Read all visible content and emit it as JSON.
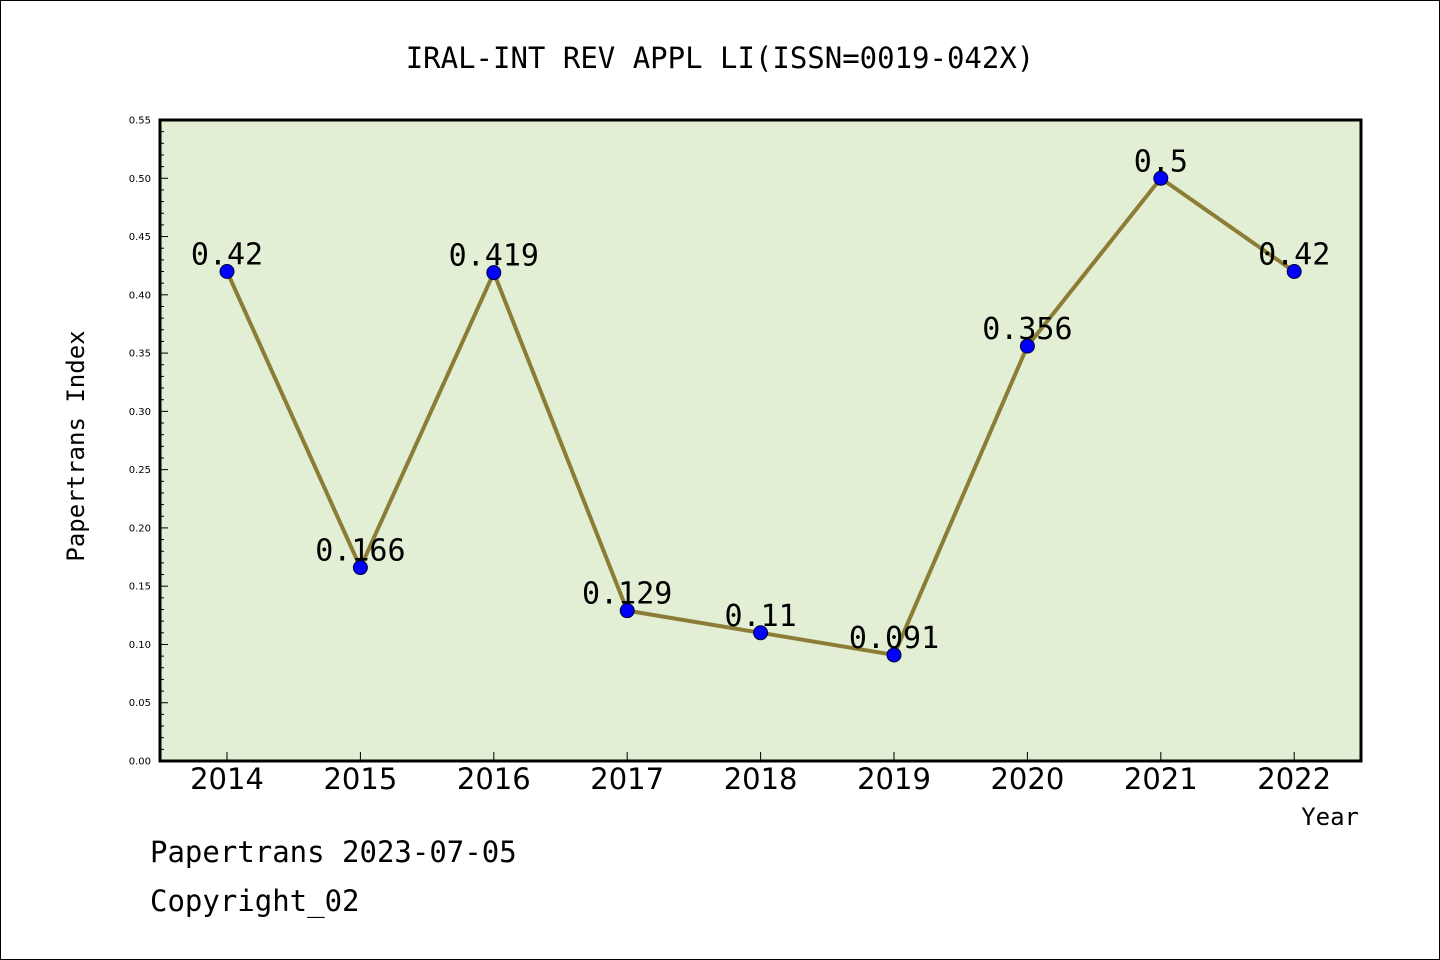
{
  "chart_data": {
    "type": "line",
    "title": "IRAL-INT REV APPL LI(ISSN=0019-042X)",
    "xlabel": "Year",
    "ylabel": "Papertrans Index",
    "categories": [
      "2014",
      "2015",
      "2016",
      "2017",
      "2018",
      "2019",
      "2020",
      "2021",
      "2022"
    ],
    "values": [
      0.42,
      0.166,
      0.419,
      0.129,
      0.11,
      0.091,
      0.356,
      0.5,
      0.42
    ],
    "data_labels": [
      "0.42",
      "0.166",
      "0.419",
      "0.129",
      "0.11",
      "0.091",
      "0.356",
      "0.5",
      "0.42"
    ],
    "ylim": [
      0,
      0.55
    ],
    "yticks": [
      "0.00",
      "0.05",
      "0.10",
      "0.15",
      "0.20",
      "0.25",
      "0.30",
      "0.35",
      "0.40",
      "0.45",
      "0.50",
      "0.55"
    ],
    "grid": false,
    "colors": {
      "plot_background": "#e2efd4",
      "line": "#8b7d35",
      "marker": "#0000ff"
    }
  },
  "footer": {
    "date_text": "Papertrans 2023-07-05",
    "copyright_text": "Copyright_02"
  }
}
